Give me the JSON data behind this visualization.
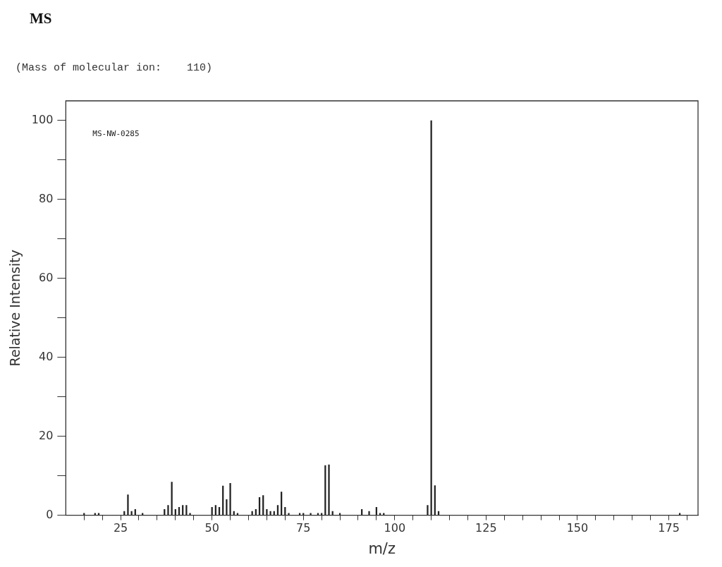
{
  "chart_data": {
    "type": "bar",
    "title": "MS",
    "subtitle": "(Mass of molecular ion:    110)",
    "xlabel": "m/z",
    "ylabel": "Relative Intensity",
    "annotations": [
      "MS-NW-0285"
    ],
    "x": [
      15,
      18,
      19,
      26,
      27,
      28,
      29,
      31,
      37,
      38,
      39,
      40,
      41,
      42,
      43,
      44,
      50,
      51,
      52,
      53,
      54,
      55,
      56,
      57,
      61,
      62,
      63,
      64,
      65,
      66,
      67,
      68,
      69,
      70,
      71,
      74,
      75,
      77,
      79,
      80,
      81,
      82,
      83,
      85,
      91,
      93,
      95,
      96,
      97,
      109,
      110,
      111,
      112,
      178
    ],
    "values": [
      0.5,
      0.5,
      0.5,
      1,
      5.2,
      1,
      1.5,
      0.5,
      1.5,
      2.5,
      8.4,
      1.5,
      2,
      2.5,
      2.5,
      0.5,
      2,
      2.5,
      2,
      7.4,
      4,
      8.1,
      1,
      0.5,
      1,
      1.5,
      4.5,
      5,
      1.5,
      1,
      1,
      2.5,
      5.9,
      2,
      0.5,
      0.5,
      0.5,
      0.5,
      0.5,
      0.5,
      12.6,
      12.8,
      1,
      0.5,
      1.5,
      1,
      2,
      0.5,
      0.5,
      2.5,
      100,
      7.5,
      1,
      0.5
    ],
    "color": "#222222",
    "xlim": [
      10,
      183
    ],
    "xticks": [
      25,
      50,
      75,
      100,
      125,
      150,
      175,
      {
        "value": 15,
        "label": null
      },
      {
        "value": 20,
        "label": null
      },
      {
        "value": 30,
        "label": null
      },
      {
        "value": 35,
        "label": null
      },
      {
        "value": 40,
        "label": null
      },
      {
        "value": 45,
        "label": null
      },
      {
        "value": 55,
        "label": null
      },
      {
        "value": 60,
        "label": null
      },
      {
        "value": 65,
        "label": null
      },
      {
        "value": 70,
        "label": null
      },
      {
        "value": 80,
        "label": null
      },
      {
        "value": 85,
        "label": null
      },
      {
        "value": 90,
        "label": null
      },
      {
        "value": 95,
        "label": null
      },
      {
        "value": 105,
        "label": null
      },
      {
        "value": 110,
        "label": null
      },
      {
        "value": 115,
        "label": null
      },
      {
        "value": 120,
        "label": null
      },
      {
        "value": 130,
        "label": null
      },
      {
        "value": 135,
        "label": null
      },
      {
        "value": 140,
        "label": null
      },
      {
        "value": 145,
        "label": null
      },
      {
        "value": 155,
        "label": null
      },
      {
        "value": 160,
        "label": null
      },
      {
        "value": 165,
        "label": null
      },
      {
        "value": 170,
        "label": null
      },
      {
        "value": 180,
        "label": null
      }
    ],
    "ylim": [
      0,
      105
    ],
    "yticks": [
      0,
      20,
      40,
      60,
      80,
      100,
      {
        "value": 10,
        "label": null
      },
      {
        "value": 30,
        "label": null
      },
      {
        "value": 50,
        "label": null
      },
      {
        "value": 70,
        "label": null
      },
      {
        "value": 90,
        "label": null
      }
    ],
    "grid": false,
    "legend": false
  }
}
